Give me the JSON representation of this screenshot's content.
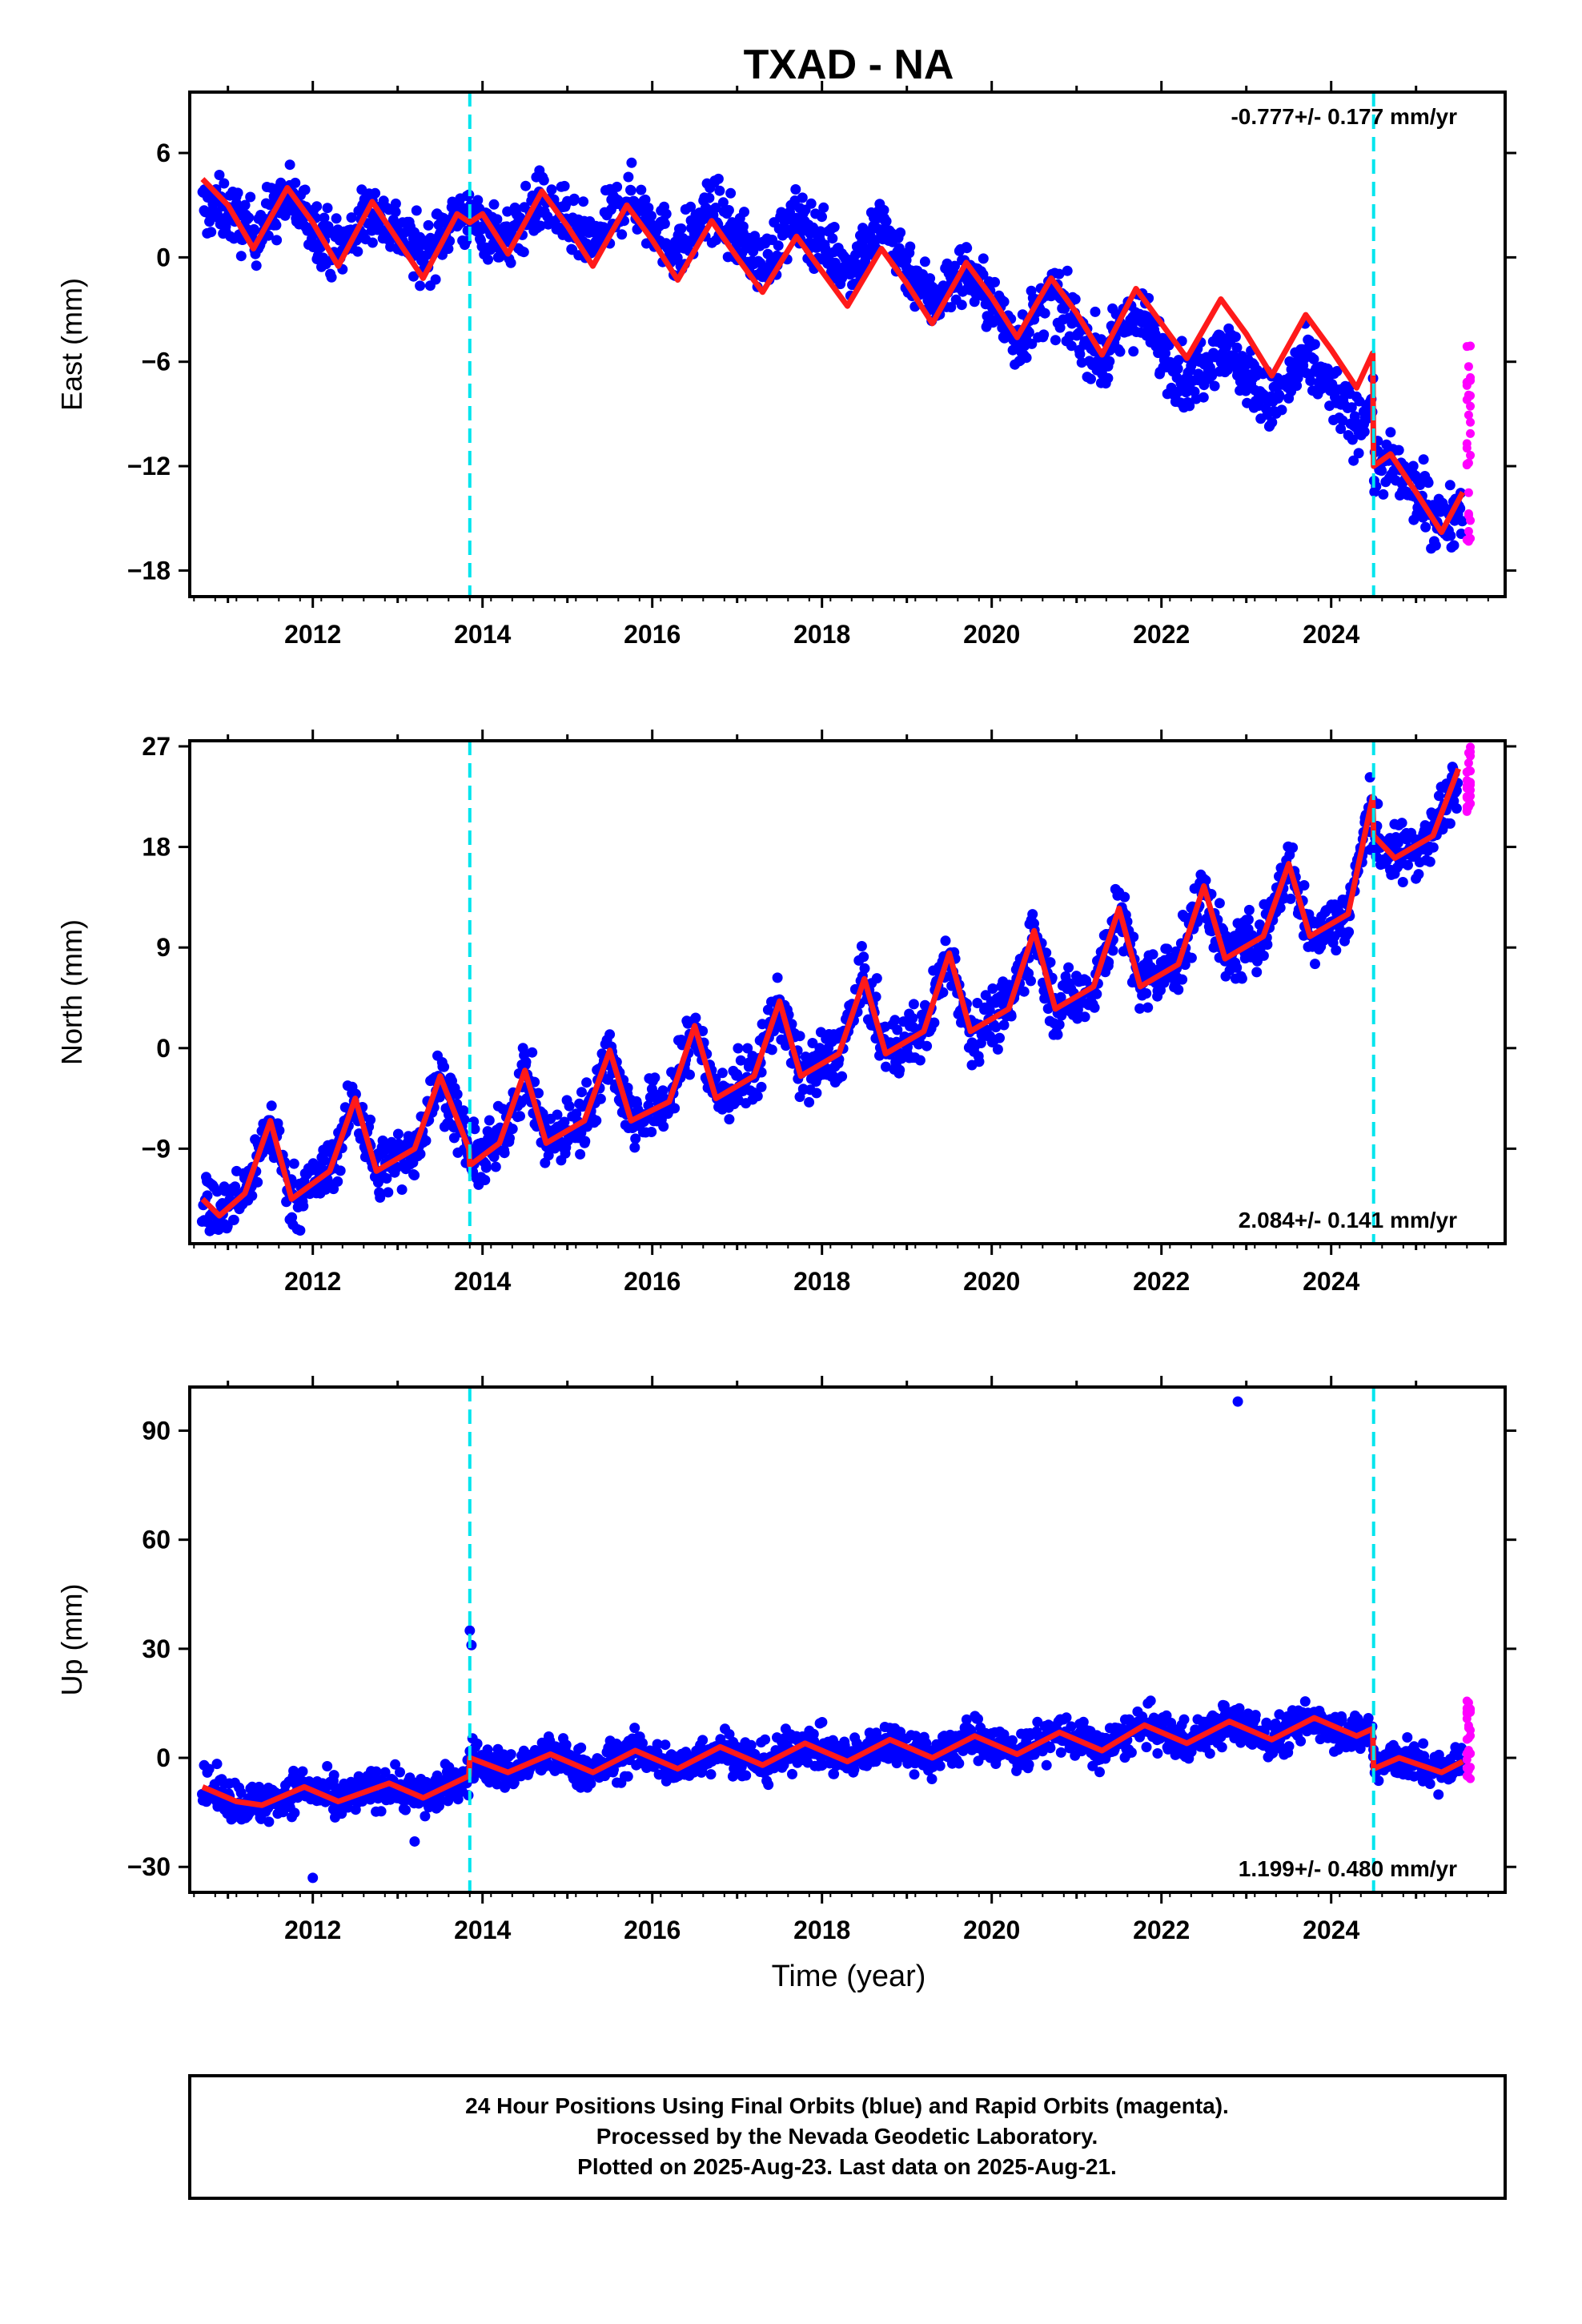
{
  "title": "TXAD - NA",
  "xlabel": "Time (year)",
  "footer": {
    "line1": "24 Hour Positions Using Final Orbits (blue) and Rapid Orbits (magenta).",
    "line2": "Processed by the Nevada Geodetic Laboratory.",
    "line3": "Plotted on 2025-Aug-23. Last data on 2025-Aug-21."
  },
  "colors": {
    "final": "#0000ff",
    "rapid": "#ff00ff",
    "model": "#ff1a1a",
    "break": "#00e5ee"
  },
  "chart_data": [
    {
      "type": "scatter",
      "name": "east",
      "ylabel": "East (mm)",
      "rate_label": "-0.777+/- 0.177 mm/yr",
      "rate_position": "top-right",
      "xlim": [
        2010.55,
        2026.05
      ],
      "ylim": [
        -19.5,
        9.5
      ],
      "yticks": [
        6,
        0,
        -6,
        -12,
        -18
      ],
      "xticks": [
        2012,
        2014,
        2016,
        2018,
        2020,
        2022,
        2024
      ],
      "breaks": [
        2013.85,
        2024.5
      ],
      "model": {
        "x": [
          2010.7,
          2011.0,
          2011.3,
          2011.7,
          2012.0,
          2012.3,
          2012.7,
          2013.0,
          2013.3,
          2013.7,
          2013.85,
          2014.0,
          2014.3,
          2014.7,
          2015.0,
          2015.3,
          2015.7,
          2016.0,
          2016.3,
          2016.7,
          2017.0,
          2017.3,
          2017.7,
          2018.0,
          2018.3,
          2018.7,
          2019.0,
          2019.3,
          2019.7,
          2020.0,
          2020.3,
          2020.7,
          2021.0,
          2021.3,
          2021.7,
          2022.0,
          2022.3,
          2022.7,
          2023.0,
          2023.3,
          2023.7,
          2024.0,
          2024.3,
          2024.49,
          2024.5,
          2024.7,
          2025.0,
          2025.3,
          2025.55
        ],
        "y": [
          4.5,
          3.0,
          0.5,
          4.0,
          2.0,
          -0.5,
          3.2,
          1.0,
          -1.2,
          2.5,
          2.0,
          2.5,
          0.2,
          3.8,
          1.8,
          -0.5,
          3.0,
          1.0,
          -1.3,
          2.1,
          0.0,
          -2.0,
          1.2,
          -0.8,
          -2.8,
          0.5,
          -1.5,
          -3.8,
          -0.3,
          -2.3,
          -4.6,
          -1.2,
          -3.2,
          -5.6,
          -1.8,
          -3.8,
          -5.8,
          -2.4,
          -4.4,
          -6.8,
          -3.3,
          -5.3,
          -7.5,
          -5.5,
          -12.0,
          -11.3,
          -13.5,
          -15.8,
          -13.5
        ]
      },
      "final_band": {
        "x": [
          2010.7,
          2011.0,
          2011.3,
          2011.7,
          2012.0,
          2012.3,
          2012.7,
          2013.0,
          2013.3,
          2013.7,
          2013.85,
          2014.0,
          2014.3,
          2014.7,
          2015.0,
          2015.3,
          2015.7,
          2016.0,
          2016.3,
          2016.7,
          2017.0,
          2017.3,
          2017.7,
          2018.0,
          2018.3,
          2018.7,
          2019.0,
          2019.3,
          2019.7,
          2020.0,
          2020.3,
          2020.7,
          2021.0,
          2021.3,
          2021.7,
          2022.0,
          2022.3,
          2022.7,
          2023.0,
          2023.3,
          2023.7,
          2024.0,
          2024.3,
          2024.49,
          2024.5,
          2024.7,
          2025.0,
          2025.3,
          2025.55
        ],
        "y": [
          1.5,
          2.5,
          2.0,
          3.0,
          2.0,
          1.0,
          2.5,
          2.0,
          1.0,
          2.5,
          2.0,
          1.5,
          1.5,
          3.0,
          2.0,
          1.5,
          4.0,
          3.0,
          1.5,
          3.5,
          2.0,
          1.0,
          3.0,
          2.5,
          1.0,
          3.0,
          0.5,
          -1.5,
          -1.0,
          -3.0,
          -5.0,
          -3.0,
          -4.5,
          -6.5,
          -4.0,
          -6.5,
          -8.5,
          -7.0,
          -8.5,
          -10.0,
          -8.0,
          -9.5,
          -11.5,
          -10.5,
          -12.0,
          -12.5,
          -13.5,
          -15.0,
          -14.5
        ]
      },
      "rapid": {
        "x": [
          2025.6,
          2025.62,
          2025.64
        ],
        "y_range": [
          -16.5,
          -5.0
        ]
      }
    },
    {
      "type": "scatter",
      "name": "north",
      "ylabel": "North (mm)",
      "rate_label": "2.084+/- 0.141 mm/yr",
      "rate_position": "bottom-right",
      "xlim": [
        2010.55,
        2026.05
      ],
      "ylim": [
        -17.5,
        27.5
      ],
      "yticks": [
        27,
        18,
        9,
        0,
        -9
      ],
      "xticks": [
        2012,
        2014,
        2016,
        2018,
        2020,
        2022,
        2024
      ],
      "breaks": [
        2013.85,
        2024.5
      ],
      "model": {
        "x": [
          2010.7,
          2010.9,
          2011.2,
          2011.5,
          2011.75,
          2012.2,
          2012.5,
          2012.75,
          2013.2,
          2013.5,
          2013.84,
          2013.85,
          2014.2,
          2014.5,
          2014.75,
          2015.2,
          2015.5,
          2015.75,
          2016.2,
          2016.5,
          2016.75,
          2017.2,
          2017.5,
          2017.75,
          2018.2,
          2018.5,
          2018.75,
          2019.2,
          2019.5,
          2019.75,
          2020.2,
          2020.5,
          2020.75,
          2021.2,
          2021.5,
          2021.75,
          2022.2,
          2022.5,
          2022.75,
          2023.2,
          2023.5,
          2023.75,
          2024.2,
          2024.49,
          2024.5,
          2024.75,
          2025.2,
          2025.5
        ],
        "y": [
          -13.5,
          -15.0,
          -13.0,
          -6.5,
          -13.5,
          -11.0,
          -4.5,
          -11.0,
          -9.0,
          -2.5,
          -9.0,
          -10.5,
          -8.5,
          -2.0,
          -8.5,
          -6.5,
          -0.2,
          -6.5,
          -4.8,
          2.0,
          -4.5,
          -2.5,
          4.2,
          -2.5,
          -0.5,
          6.2,
          -0.5,
          1.5,
          8.5,
          1.5,
          3.5,
          10.5,
          3.5,
          5.5,
          12.5,
          5.5,
          7.5,
          14.5,
          8.0,
          10.0,
          16.5,
          10.0,
          12.0,
          22.5,
          19.0,
          17.0,
          19.0,
          25.0
        ]
      },
      "rapid": {
        "x": [
          2025.6,
          2025.62,
          2025.64
        ],
        "y_range": [
          21.0,
          27.0
        ]
      }
    },
    {
      "type": "scatter",
      "name": "up",
      "ylabel": "Up (mm)",
      "rate_label": "1.199+/- 0.480 mm/yr",
      "rate_position": "bottom-right",
      "xlim": [
        2010.55,
        2026.05
      ],
      "ylim": [
        -37,
        102
      ],
      "yticks": [
        90,
        60,
        30,
        0,
        -30
      ],
      "xticks": [
        2012,
        2014,
        2016,
        2018,
        2020,
        2022,
        2024
      ],
      "breaks": [
        2013.85,
        2024.5
      ],
      "model": {
        "x": [
          2010.7,
          2011.1,
          2011.4,
          2011.9,
          2012.3,
          2012.9,
          2013.3,
          2013.84,
          2013.85,
          2014.3,
          2014.8,
          2015.3,
          2015.8,
          2016.3,
          2016.8,
          2017.3,
          2017.8,
          2018.3,
          2018.8,
          2019.3,
          2019.8,
          2020.3,
          2020.8,
          2021.3,
          2021.8,
          2022.3,
          2022.8,
          2023.3,
          2023.8,
          2024.3,
          2024.49,
          2024.5,
          2024.8,
          2025.3,
          2025.55
        ],
        "y": [
          -8,
          -12,
          -13,
          -8,
          -12,
          -7,
          -11,
          -5,
          0,
          -4,
          1,
          -4,
          2,
          -3,
          3,
          -2,
          4,
          -1,
          5,
          0,
          6,
          1,
          7,
          2,
          9,
          4,
          10,
          5,
          11,
          6,
          8,
          -3,
          0,
          -4,
          -1
        ]
      },
      "outliers": [
        [
          2013.85,
          35
        ],
        [
          2013.87,
          31
        ],
        [
          2022.9,
          98
        ],
        [
          2012.0,
          -33
        ],
        [
          2013.2,
          -23
        ]
      ],
      "rapid": {
        "x": [
          2025.6,
          2025.62,
          2025.64
        ],
        "y_range": [
          -7.0,
          21.0
        ]
      }
    }
  ]
}
